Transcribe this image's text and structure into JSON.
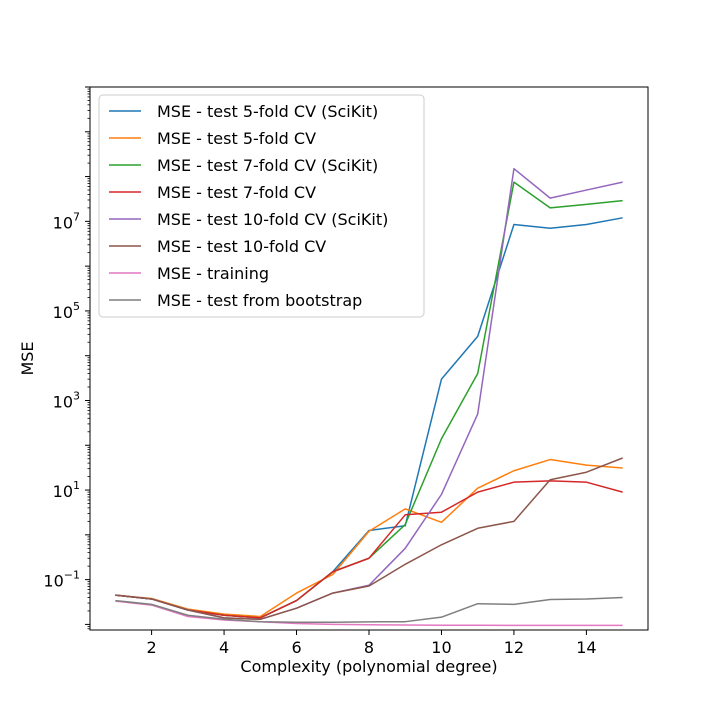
{
  "chart_data": {
    "type": "line",
    "xlabel": "Complexity (polynomial degree)",
    "ylabel": "MSE",
    "xscale": "linear",
    "yscale": "log",
    "xlim": [
      0.3,
      15.7
    ],
    "ylim": [
      0.0075,
      10000000000
    ],
    "x_ticks": [
      2,
      4,
      6,
      8,
      10,
      12,
      14
    ],
    "y_ticks": [
      {
        "value": 0.1,
        "base": "10",
        "exp": "−1"
      },
      {
        "value": 10,
        "base": "10",
        "exp": "1"
      },
      {
        "value": 1000,
        "base": "10",
        "exp": "3"
      },
      {
        "value": 100000,
        "base": "10",
        "exp": "5"
      },
      {
        "value": 10000000,
        "base": "10",
        "exp": "7"
      }
    ],
    "legend_position": "top-left",
    "x": [
      1,
      2,
      3,
      4,
      5,
      6,
      7,
      8,
      9,
      10,
      11,
      12,
      13,
      14,
      15
    ],
    "series": [
      {
        "name": "MSE - test 5-fold CV (SciKit)",
        "color": "#1f77b4",
        "values": [
          0.045,
          0.037,
          0.021,
          0.016,
          0.014,
          0.034,
          0.15,
          1.25,
          1.6,
          3000,
          27000,
          8500000,
          7000000,
          8500000,
          12000000
        ]
      },
      {
        "name": "MSE - test 5-fold CV",
        "color": "#ff7f0e",
        "values": [
          0.045,
          0.038,
          0.022,
          0.017,
          0.015,
          0.05,
          0.13,
          1.2,
          3.8,
          1.9,
          11,
          27,
          48,
          36,
          31
        ]
      },
      {
        "name": "MSE - test 7-fold CV (SciKit)",
        "color": "#2ca02c",
        "values": [
          0.045,
          0.037,
          0.021,
          0.016,
          0.014,
          0.034,
          0.15,
          0.3,
          1.7,
          140,
          4000,
          75000000,
          20000000,
          24000000,
          29000000
        ]
      },
      {
        "name": "MSE - test 7-fold CV",
        "color": "#d62728",
        "values": [
          0.045,
          0.037,
          0.021,
          0.016,
          0.014,
          0.034,
          0.15,
          0.3,
          2.8,
          3.2,
          9,
          15,
          16,
          15,
          9
        ]
      },
      {
        "name": "MSE - test 10-fold CV (SciKit)",
        "color": "#9467bd",
        "values": [
          0.045,
          0.037,
          0.021,
          0.014,
          0.013,
          0.023,
          0.05,
          0.075,
          0.5,
          8,
          500,
          150000000,
          33000000,
          50000000,
          75000000
        ]
      },
      {
        "name": "MSE - test 10-fold CV",
        "color": "#8c564b",
        "values": [
          0.045,
          0.037,
          0.021,
          0.014,
          0.013,
          0.023,
          0.05,
          0.072,
          0.22,
          0.6,
          1.4,
          2,
          17,
          25,
          52
        ]
      },
      {
        "name": "MSE - training",
        "color": "#e377c2",
        "values": [
          0.033,
          0.027,
          0.015,
          0.0125,
          0.0115,
          0.0105,
          0.01,
          0.0098,
          0.0097,
          0.0096,
          0.0096,
          0.0095,
          0.0095,
          0.0095,
          0.0095
        ]
      },
      {
        "name": "MSE - test from bootstrap",
        "color": "#7f7f7f",
        "values": [
          0.034,
          0.028,
          0.016,
          0.013,
          0.0115,
          0.0112,
          0.0112,
          0.0114,
          0.0115,
          0.0145,
          0.029,
          0.028,
          0.036,
          0.037,
          0.04
        ]
      }
    ]
  }
}
